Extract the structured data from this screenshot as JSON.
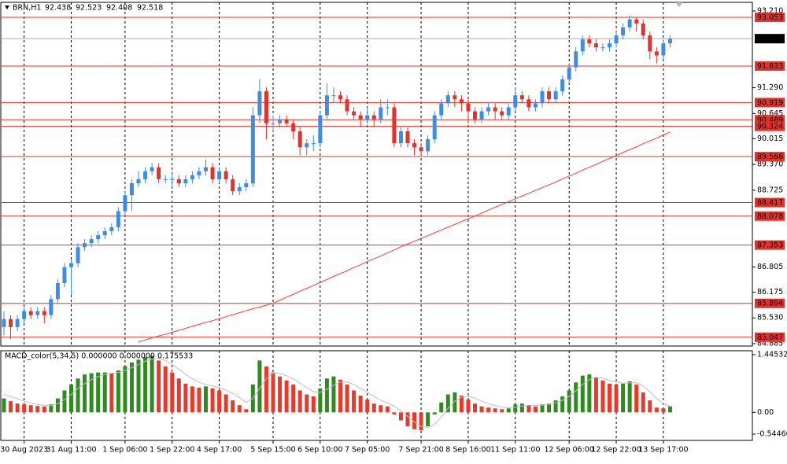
{
  "chart_data": [
    {
      "type": "candlestick",
      "title": "BRN,H1",
      "quote": [
        92.438,
        92.523,
        92.408,
        92.518
      ],
      "up_color": "#3d8de0",
      "down_color": "#e3322b",
      "ma_color": "#ff3b30",
      "grid": true,
      "ylim": [
        84.885,
        93.21
      ],
      "yticks": [
        {
          "value": 93.21,
          "label": "93.210"
        },
        {
          "value": 91.29,
          "label": "91.290"
        },
        90.645,
        90.015,
        {
          "value": 89.37,
          "label": "89.370"
        },
        88.725,
        86.805,
        86.175,
        {
          "value": 85.53,
          "label": "85.530"
        },
        84.885
      ],
      "levels": [
        93.053,
        91.833,
        90.919,
        90.489,
        90.324,
        89.566,
        88.417,
        88.078,
        87.353,
        85.894,
        85.047
      ],
      "current_price": 92.518,
      "categories": [
        null,
        null,
        null,
        "30 Aug 2023",
        null,
        null,
        null,
        null,
        null,
        null,
        "31 Aug 11:00",
        null,
        null,
        null,
        null,
        null,
        null,
        null,
        "1 Sep 06:00",
        null,
        null,
        null,
        null,
        null,
        null,
        "1 Sep 22:00",
        null,
        null,
        null,
        null,
        null,
        null,
        "4 Sep 17:00",
        null,
        null,
        null,
        null,
        null,
        null,
        null,
        "5 Sep 15:00",
        null,
        null,
        null,
        null,
        null,
        null,
        "6 Sep 10:00",
        null,
        null,
        null,
        null,
        null,
        null,
        "7 Sep 05:00",
        null,
        null,
        null,
        null,
        null,
        null,
        null,
        "7 Sep 21:00",
        null,
        null,
        null,
        null,
        null,
        null,
        "8 Sep 16:00",
        null,
        null,
        null,
        null,
        null,
        null,
        "11 Sep 11:00",
        null,
        null,
        null,
        null,
        null,
        null,
        null,
        "12 Sep 06:00",
        null,
        null,
        null,
        null,
        null,
        null,
        "12 Sep 22:00",
        null,
        null,
        null,
        null,
        null,
        null,
        "13 Sep 17:00",
        null
      ],
      "ohlc": [
        [
          85.3,
          85.7,
          85.1,
          85.5
        ],
        [
          85.5,
          85.6,
          85.0,
          85.3
        ],
        [
          85.3,
          85.6,
          85.2,
          85.5
        ],
        [
          85.5,
          85.8,
          85.4,
          85.7
        ],
        [
          85.7,
          85.8,
          85.5,
          85.6
        ],
        [
          85.6,
          85.8,
          85.5,
          85.7
        ],
        [
          85.7,
          85.8,
          85.4,
          85.6
        ],
        [
          85.6,
          86.1,
          85.5,
          86.0
        ],
        [
          86.0,
          86.5,
          85.9,
          86.4
        ],
        [
          86.4,
          86.9,
          86.3,
          86.8
        ],
        [
          86.8,
          87.0,
          86.1,
          86.9
        ],
        [
          86.9,
          87.4,
          86.8,
          87.3
        ],
        [
          87.3,
          87.5,
          87.2,
          87.4
        ],
        [
          87.4,
          87.6,
          87.3,
          87.5
        ],
        [
          87.5,
          87.7,
          87.4,
          87.6
        ],
        [
          87.6,
          87.8,
          87.5,
          87.7
        ],
        [
          87.7,
          87.9,
          87.6,
          87.8
        ],
        [
          87.8,
          88.3,
          87.7,
          88.2
        ],
        [
          88.2,
          88.7,
          88.1,
          88.6
        ],
        [
          88.6,
          89.0,
          88.2,
          88.9
        ],
        [
          88.9,
          89.2,
          88.8,
          89.0
        ],
        [
          89.0,
          89.3,
          88.9,
          89.2
        ],
        [
          89.2,
          89.4,
          89.1,
          89.3
        ],
        [
          89.3,
          89.4,
          88.9,
          89.0
        ],
        [
          89.0,
          89.1,
          88.9,
          89.0
        ],
        [
          89.0,
          89.2,
          88.8,
          89.0
        ],
        [
          89.0,
          89.1,
          88.8,
          88.9
        ],
        [
          88.9,
          89.1,
          88.8,
          89.0
        ],
        [
          89.0,
          89.2,
          88.9,
          89.1
        ],
        [
          89.1,
          89.3,
          89.0,
          89.2
        ],
        [
          89.2,
          89.5,
          89.1,
          89.3
        ],
        [
          89.3,
          89.4,
          88.9,
          89.0
        ],
        [
          89.0,
          89.3,
          88.9,
          89.2
        ],
        [
          89.2,
          89.3,
          88.9,
          89.0
        ],
        [
          89.0,
          89.1,
          88.6,
          88.7
        ],
        [
          88.7,
          88.9,
          88.6,
          88.8
        ],
        [
          88.8,
          89.0,
          88.7,
          88.9
        ],
        [
          88.9,
          90.8,
          88.8,
          90.6
        ],
        [
          90.6,
          91.5,
          90.4,
          91.2
        ],
        [
          91.2,
          91.3,
          90.0,
          90.4
        ],
        [
          90.4,
          90.6,
          90.2,
          90.4
        ],
        [
          90.4,
          90.6,
          90.3,
          90.5
        ],
        [
          90.5,
          90.6,
          90.3,
          90.4
        ],
        [
          90.4,
          90.5,
          90.0,
          90.2
        ],
        [
          90.2,
          90.3,
          89.6,
          89.8
        ],
        [
          89.8,
          90.0,
          89.6,
          89.9
        ],
        [
          89.9,
          90.1,
          89.7,
          89.9
        ],
        [
          89.9,
          90.7,
          89.8,
          90.6
        ],
        [
          90.6,
          91.4,
          90.5,
          91.1
        ],
        [
          91.1,
          91.3,
          90.9,
          91.1
        ],
        [
          91.1,
          91.2,
          90.9,
          91.0
        ],
        [
          91.0,
          91.1,
          90.6,
          90.7
        ],
        [
          90.7,
          90.8,
          90.5,
          90.6
        ],
        [
          90.6,
          90.7,
          90.3,
          90.5
        ],
        [
          90.5,
          90.8,
          90.4,
          90.6
        ],
        [
          90.6,
          90.7,
          90.3,
          90.5
        ],
        [
          90.5,
          91.0,
          90.4,
          90.8
        ],
        [
          90.8,
          91.0,
          90.6,
          90.8
        ],
        [
          90.8,
          90.9,
          89.8,
          89.9
        ],
        [
          89.9,
          90.3,
          89.8,
          90.2
        ],
        [
          90.2,
          90.3,
          89.8,
          89.9
        ],
        [
          89.9,
          90.0,
          89.6,
          89.8
        ],
        [
          89.8,
          89.9,
          89.6,
          89.7
        ],
        [
          89.7,
          90.1,
          89.6,
          90.0
        ],
        [
          90.0,
          90.7,
          89.9,
          90.6
        ],
        [
          90.6,
          91.0,
          90.5,
          90.9
        ],
        [
          90.9,
          91.2,
          90.8,
          91.1
        ],
        [
          91.1,
          91.2,
          90.8,
          91.0
        ],
        [
          91.0,
          91.1,
          90.7,
          90.9
        ],
        [
          90.9,
          91.0,
          90.4,
          90.7
        ],
        [
          90.7,
          90.8,
          90.4,
          90.5
        ],
        [
          90.5,
          90.8,
          90.4,
          90.7
        ],
        [
          90.7,
          90.9,
          90.6,
          90.8
        ],
        [
          90.8,
          90.9,
          90.5,
          90.7
        ],
        [
          90.7,
          90.8,
          90.5,
          90.6
        ],
        [
          90.6,
          90.9,
          90.5,
          90.8
        ],
        [
          90.8,
          91.3,
          90.7,
          91.1
        ],
        [
          91.1,
          91.2,
          90.9,
          91.0
        ],
        [
          91.0,
          91.1,
          90.7,
          90.8
        ],
        [
          90.8,
          91.0,
          90.7,
          90.9
        ],
        [
          90.9,
          91.3,
          90.8,
          91.2
        ],
        [
          91.2,
          91.3,
          90.9,
          91.0
        ],
        [
          91.0,
          91.3,
          90.9,
          91.2
        ],
        [
          91.2,
          91.6,
          91.1,
          91.5
        ],
        [
          91.5,
          91.9,
          91.4,
          91.8
        ],
        [
          91.8,
          92.3,
          91.7,
          92.2
        ],
        [
          92.2,
          92.6,
          92.1,
          92.5
        ],
        [
          92.5,
          92.6,
          92.3,
          92.4
        ],
        [
          92.4,
          92.5,
          92.2,
          92.3
        ],
        [
          92.3,
          92.4,
          92.2,
          92.3
        ],
        [
          92.3,
          92.5,
          92.2,
          92.4
        ],
        [
          92.4,
          92.7,
          92.3,
          92.6
        ],
        [
          92.6,
          92.9,
          92.5,
          92.8
        ],
        [
          92.8,
          93.1,
          92.7,
          93.0
        ],
        [
          93.0,
          93.05,
          92.7,
          92.9
        ],
        [
          92.9,
          93.0,
          92.5,
          92.6
        ],
        [
          92.6,
          92.7,
          92.0,
          92.2
        ],
        [
          92.2,
          92.3,
          91.9,
          92.1
        ],
        [
          92.1,
          92.5,
          92.0,
          92.4
        ],
        [
          92.4,
          92.6,
          92.3,
          92.518
        ]
      ],
      "ma": [
        null,
        null,
        null,
        null,
        null,
        null,
        null,
        null,
        null,
        null,
        null,
        null,
        null,
        null,
        null,
        null,
        null,
        null,
        null,
        null,
        84.93,
        84.98,
        85.03,
        85.08,
        85.12,
        85.17,
        85.22,
        85.27,
        85.32,
        85.37,
        85.42,
        85.46,
        85.51,
        85.56,
        85.61,
        85.66,
        85.71,
        85.76,
        85.8,
        85.85,
        85.9,
        85.97,
        86.05,
        86.12,
        86.2,
        86.27,
        86.34,
        86.42,
        86.49,
        86.57,
        86.64,
        86.71,
        86.79,
        86.86,
        86.94,
        87.01,
        87.08,
        87.16,
        87.23,
        87.31,
        87.38,
        87.45,
        87.52,
        87.59,
        87.66,
        87.73,
        87.8,
        87.87,
        87.94,
        88.01,
        88.08,
        88.15,
        88.23,
        88.3,
        88.37,
        88.44,
        88.51,
        88.58,
        88.65,
        88.72,
        88.79,
        88.86,
        88.93,
        89.01,
        89.08,
        89.15,
        89.23,
        89.3,
        89.37,
        89.45,
        89.52,
        89.59,
        89.67,
        89.74,
        89.81,
        89.89,
        89.96,
        90.03,
        90.11,
        90.18
      ]
    },
    {
      "type": "macd",
      "title": "MACD_color(5,34,5) 0.000000 0.000000 0.175533",
      "up_color": "#2e8b1e",
      "down_color": "#e8392a",
      "signal_color": "#c0c0c0",
      "ylim": [
        -0.544609,
        1.445325
      ],
      "yticks": [
        1.445325,
        {
          "value": 0,
          "label": "0.00"
        },
        -0.544609
      ],
      "values": [
        0.35,
        0.28,
        0.22,
        0.2,
        0.18,
        0.16,
        0.15,
        0.2,
        0.35,
        0.55,
        0.7,
        0.85,
        0.95,
        0.98,
        1.0,
        1.0,
        0.98,
        1.05,
        1.15,
        1.25,
        1.32,
        1.38,
        1.42,
        1.3,
        1.15,
        1.0,
        0.85,
        0.72,
        0.65,
        0.62,
        0.65,
        0.6,
        0.55,
        0.45,
        0.3,
        0.18,
        0.08,
        0.7,
        1.3,
        1.15,
        1.0,
        0.9,
        0.8,
        0.7,
        0.55,
        0.45,
        0.4,
        0.6,
        0.85,
        0.9,
        0.82,
        0.7,
        0.55,
        0.42,
        0.32,
        0.22,
        0.18,
        0.15,
        -0.05,
        -0.2,
        -0.35,
        -0.42,
        -0.45,
        -0.35,
        -0.05,
        0.25,
        0.45,
        0.5,
        0.42,
        0.32,
        0.22,
        0.15,
        0.12,
        0.1,
        0.08,
        0.1,
        0.2,
        0.22,
        0.18,
        0.15,
        0.2,
        0.22,
        0.3,
        0.4,
        0.55,
        0.75,
        0.92,
        0.95,
        0.88,
        0.8,
        0.72,
        0.7,
        0.72,
        0.78,
        0.7,
        0.5,
        0.3,
        0.12,
        0.1,
        0.15
      ],
      "signal": [
        0.45,
        0.4,
        0.34,
        0.28,
        0.23,
        0.2,
        0.18,
        0.17,
        0.22,
        0.32,
        0.45,
        0.6,
        0.72,
        0.82,
        0.9,
        0.95,
        0.98,
        1.0,
        1.05,
        1.12,
        1.2,
        1.28,
        1.34,
        1.35,
        1.3,
        1.2,
        1.08,
        0.95,
        0.84,
        0.75,
        0.7,
        0.66,
        0.62,
        0.56,
        0.48,
        0.37,
        0.25,
        0.35,
        0.6,
        0.85,
        0.98,
        0.98,
        0.92,
        0.84,
        0.73,
        0.62,
        0.52,
        0.5,
        0.58,
        0.68,
        0.76,
        0.76,
        0.7,
        0.6,
        0.5,
        0.4,
        0.3,
        0.24,
        0.15,
        0.04,
        -0.1,
        -0.24,
        -0.35,
        -0.38,
        -0.3,
        -0.12,
        0.1,
        0.28,
        0.38,
        0.4,
        0.36,
        0.28,
        0.22,
        0.17,
        0.13,
        0.11,
        0.13,
        0.16,
        0.18,
        0.18,
        0.18,
        0.2,
        0.24,
        0.3,
        0.4,
        0.54,
        0.7,
        0.82,
        0.88,
        0.86,
        0.8,
        0.76,
        0.73,
        0.74,
        0.74,
        0.66,
        0.52,
        0.35,
        0.22,
        0.15
      ]
    }
  ]
}
